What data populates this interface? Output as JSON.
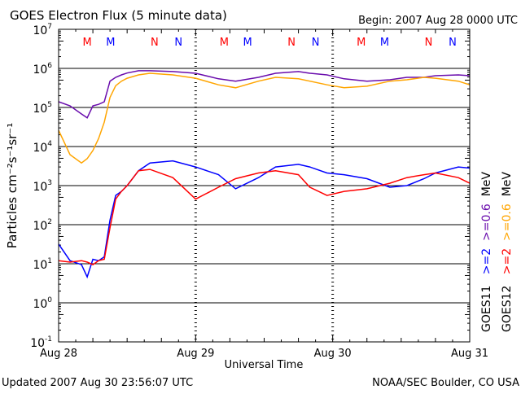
{
  "chart_data": {
    "type": "line",
    "title": "GOES Electron Flux (5 minute data)",
    "begin_label": "Begin: 2007 Aug 28 0000 UTC",
    "xlabel": "Universal Time",
    "ylabel": "Particles cm⁻²s⁻¹sr⁻¹",
    "yscale": "log",
    "ylim": [
      0.1,
      10000000
    ],
    "xlim_hours": [
      0,
      72
    ],
    "y_ticks": [
      {
        "base": "10",
        "exp": "7",
        "value": 10000000.0
      },
      {
        "base": "10",
        "exp": "6",
        "value": 1000000.0
      },
      {
        "base": "10",
        "exp": "5",
        "value": 100000.0
      },
      {
        "base": "10",
        "exp": "4",
        "value": 10000.0
      },
      {
        "base": "10",
        "exp": "3",
        "value": 1000.0
      },
      {
        "base": "10",
        "exp": "2",
        "value": 100.0
      },
      {
        "base": "10",
        "exp": "1",
        "value": 10.0
      },
      {
        "base": "10",
        "exp": "0",
        "value": 1.0
      },
      {
        "base": "10",
        "exp": "-1",
        "value": 0.1
      }
    ],
    "x_ticks": [
      {
        "label": "Aug 28",
        "hour": 0
      },
      {
        "label": "Aug 29",
        "hour": 24
      },
      {
        "label": "Aug 30",
        "hour": 48
      },
      {
        "label": "Aug 31",
        "hour": 72
      }
    ],
    "threshold_line": 1000,
    "hours": [
      0,
      2,
      4,
      5,
      6,
      7,
      8,
      9,
      10,
      11,
      12,
      14,
      16,
      20,
      24,
      28,
      31,
      35,
      38,
      42,
      44,
      47,
      50,
      54,
      58,
      61,
      64,
      66,
      70,
      72
    ],
    "series": [
      {
        "name": "GOES11 >=0.6 MeV",
        "color": "#6a0dad",
        "values": [
          140000.0,
          110000.0,
          68000.0,
          54000.0,
          110000.0,
          120000.0,
          140000.0,
          470000.0,
          590000.0,
          680000.0,
          760000.0,
          870000.0,
          870000.0,
          830000.0,
          750000.0,
          540000.0,
          470000.0,
          590000.0,
          750000.0,
          830000.0,
          750000.0,
          680000.0,
          540000.0,
          470000.0,
          510000.0,
          590000.0,
          590000.0,
          650000.0,
          680000.0,
          650000.0
        ]
      },
      {
        "name": "GOES12 >=0.6 MeV",
        "color": "#ffa500",
        "values": [
          26000.0,
          6200.0,
          3800.0,
          4900.0,
          7900.0,
          16000.0,
          42000.0,
          180000.0,
          360000.0,
          470000.0,
          560000.0,
          680000.0,
          750000.0,
          680000.0,
          560000.0,
          380000.0,
          320000.0,
          470000.0,
          590000.0,
          540000.0,
          470000.0,
          380000.0,
          320000.0,
          350000.0,
          470000.0,
          510000.0,
          590000.0,
          560000.0,
          470000.0,
          380000.0
        ]
      },
      {
        "name": "GOES11 >=2 MeV",
        "color": "#0000ff",
        "values": [
          32,
          12,
          9.5,
          4.6,
          13,
          12,
          15,
          130,
          560,
          710,
          1000,
          2400,
          3800,
          4300,
          3000,
          1900,
          830,
          1600,
          3000,
          3500,
          3000,
          2100,
          1900,
          1500,
          910,
          1000,
          1500,
          2100,
          3000,
          2800
        ]
      },
      {
        "name": "GOES12 >=2 MeV",
        "color": "#ff0000",
        "values": [
          12,
          11,
          12,
          11,
          9.5,
          12,
          13,
          83,
          450,
          710,
          1000,
          2400,
          2600,
          1600,
          450,
          910,
          1500,
          2100,
          2400,
          1900,
          910,
          560,
          710,
          830,
          1150,
          1600,
          1900,
          2100,
          1600,
          1150
        ]
      }
    ],
    "markers": [
      {
        "label": "M",
        "hour": 5,
        "color": "#ff0000"
      },
      {
        "label": "M",
        "hour": 9.1,
        "color": "#0000ff"
      },
      {
        "label": "N",
        "hour": 16.8,
        "color": "#ff0000"
      },
      {
        "label": "N",
        "hour": 21,
        "color": "#0000ff"
      },
      {
        "label": "M",
        "hour": 29,
        "color": "#ff0000"
      },
      {
        "label": "M",
        "hour": 33.1,
        "color": "#0000ff"
      },
      {
        "label": "N",
        "hour": 40.8,
        "color": "#ff0000"
      },
      {
        "label": "N",
        "hour": 45,
        "color": "#0000ff"
      },
      {
        "label": "M",
        "hour": 53,
        "color": "#ff0000"
      },
      {
        "label": "M",
        "hour": 57.1,
        "color": "#0000ff"
      },
      {
        "label": "N",
        "hour": 64.8,
        "color": "#ff0000"
      },
      {
        "label": "N",
        "hour": 69,
        "color": "#0000ff"
      }
    ],
    "legend": {
      "placement": "right",
      "columns": [
        {
          "sat": "GOES11",
          "low": ">=2",
          "low_color": "#0000ff",
          "high": ">=0.6",
          "high_color": "#6a0dad",
          "unit": "MeV"
        },
        {
          "sat": "GOES12",
          "low": ">=2",
          "low_color": "#ff0000",
          "high": ">=0.6",
          "high_color": "#ffa500",
          "unit": "MeV"
        }
      ]
    }
  },
  "footer": {
    "updated": "Updated 2007 Aug 30 23:56:07 UTC",
    "credit": "NOAA/SEC Boulder, CO USA"
  }
}
